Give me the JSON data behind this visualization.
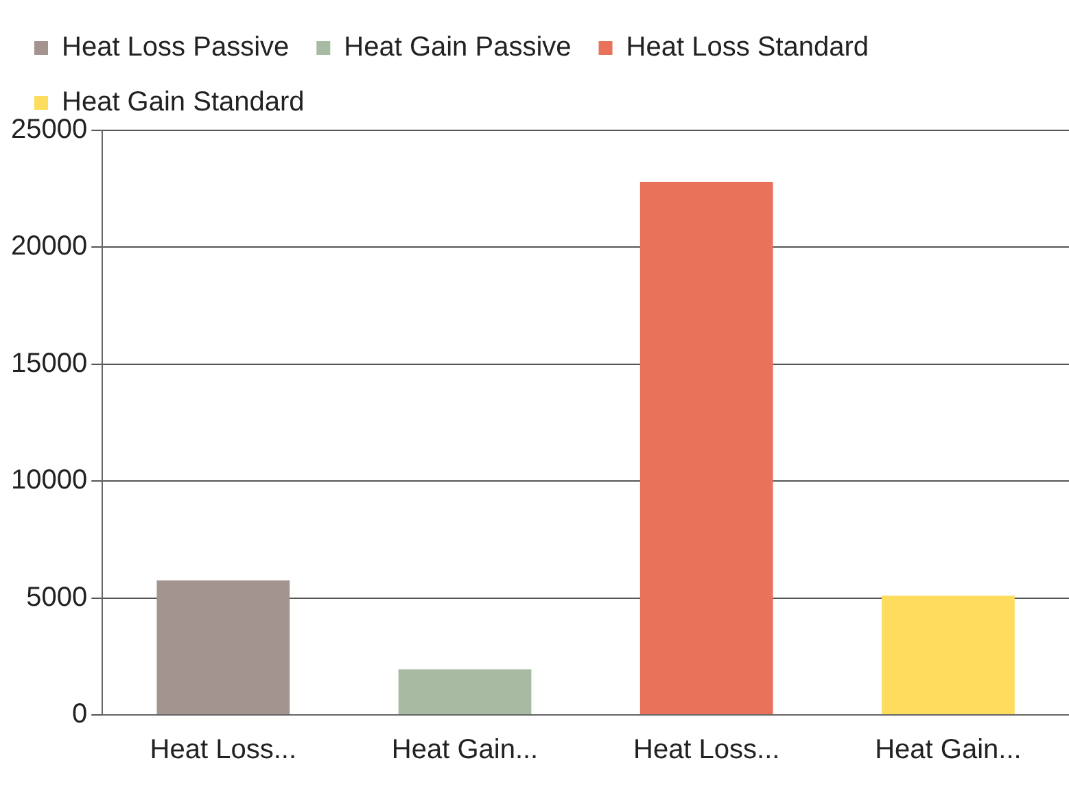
{
  "chart_data": {
    "type": "bar",
    "categories": [
      "Heat Loss...",
      "Heat Gain...",
      "Heat Loss...",
      "Heat Gain..."
    ],
    "series": [
      {
        "name": "Heat Loss Passive",
        "color": "#a3948f",
        "values": [
          5750,
          null,
          null,
          null
        ]
      },
      {
        "name": "Heat Gain Passive",
        "color": "#a7bba3",
        "values": [
          null,
          1950,
          null,
          null
        ]
      },
      {
        "name": "Heat Loss Standard",
        "color": "#e8735a",
        "values": [
          null,
          null,
          22800,
          null
        ]
      },
      {
        "name": "Heat Gain Standard",
        "color": "#fddc5e",
        "values": [
          null,
          null,
          null,
          5100
        ]
      }
    ],
    "ylim": [
      0,
      25000
    ],
    "yticks": [
      0,
      5000,
      10000,
      15000,
      20000,
      25000
    ],
    "grid": "y",
    "legend": "top"
  }
}
